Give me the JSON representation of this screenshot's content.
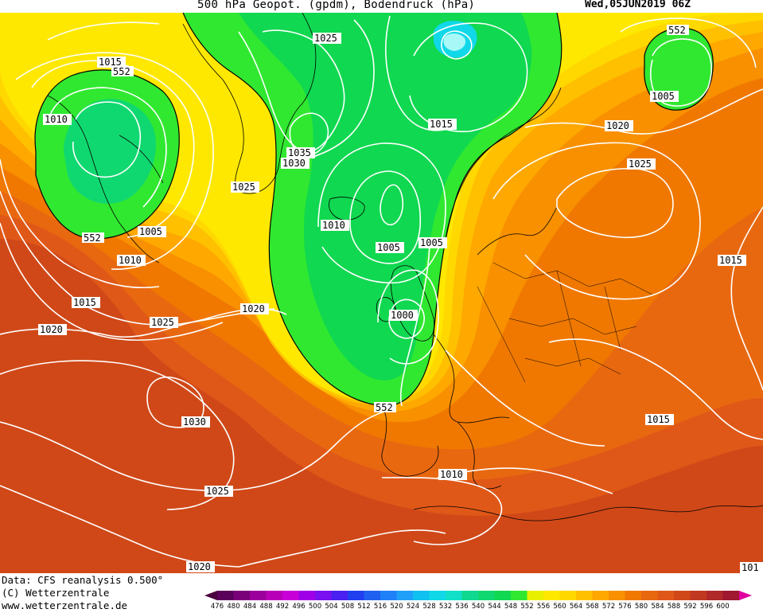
{
  "header": {
    "title": "500 hPa Geopot. (gpdm), Bodendruck (hPa)",
    "timestamp": "Wed,05JUN2019 06Z"
  },
  "footer": {
    "data_source": "Data: CFS reanalysis 0.500°",
    "copyright": "(C) Wetterzentrale",
    "website": "www.wetterzentrale.de"
  },
  "legend": {
    "values": [
      "476",
      "480",
      "484",
      "488",
      "492",
      "496",
      "500",
      "504",
      "508",
      "512",
      "516",
      "520",
      "524",
      "528",
      "532",
      "536",
      "540",
      "544",
      "548",
      "552",
      "556",
      "560",
      "564",
      "568",
      "572",
      "576",
      "580",
      "584",
      "588",
      "592",
      "596",
      "600"
    ],
    "colors": [
      "#5a005a",
      "#7a007a",
      "#9c009c",
      "#b800b8",
      "#c800d8",
      "#a000e8",
      "#7a10f0",
      "#4a20f0",
      "#2040f0",
      "#2060f0",
      "#2080f8",
      "#20a0f8",
      "#10c0f0",
      "#10d8e8",
      "#10e0c8",
      "#10d890",
      "#10d870",
      "#10d850",
      "#30e830",
      "#e8f000",
      "#ffe800",
      "#ffd800",
      "#ffc000",
      "#ffa800",
      "#f89000",
      "#f07800",
      "#e86810",
      "#e05818",
      "#d04818",
      "#c03820",
      "#b02828",
      "#a01830"
    ],
    "low_arrow_color": "#4a0040",
    "high_arrow_color": "#e000a0"
  },
  "isobars": [
    {
      "id": "1025-greenland-top",
      "label": "1025"
    },
    {
      "id": "1015-canada",
      "label": "1015"
    },
    {
      "id": "552-canada",
      "label": "552"
    },
    {
      "id": "1010-canada-west",
      "label": "1010"
    },
    {
      "id": "1035-greenland",
      "label": "1035"
    },
    {
      "id": "1030-greenland",
      "label": "1030"
    },
    {
      "id": "1025-greenland-south",
      "label": "1025"
    },
    {
      "id": "1015-northsea",
      "label": "1015"
    },
    {
      "id": "1010-atlantic",
      "label": "1010"
    },
    {
      "id": "1005-atlantic",
      "label": "1005"
    },
    {
      "id": "1005-norway",
      "label": "1005"
    },
    {
      "id": "1000-uk",
      "label": "1000"
    },
    {
      "id": "1005-canada",
      "label": "1005"
    },
    {
      "id": "1010-canada",
      "label": "1010"
    },
    {
      "id": "552-canada-south",
      "label": "552"
    },
    {
      "id": "1015-atlantic-west",
      "label": "1015"
    },
    {
      "id": "1020-atlantic-west",
      "label": "1020"
    },
    {
      "id": "1020-atlantic-center",
      "label": "1020"
    },
    {
      "id": "1025-atlantic",
      "label": "1025"
    },
    {
      "id": "1030-azores",
      "label": "1030"
    },
    {
      "id": "1025-atlantic-south",
      "label": "1025"
    },
    {
      "id": "1020-atlantic-bottom",
      "label": "1020"
    },
    {
      "id": "552-iberia",
      "label": "552"
    },
    {
      "id": "1010-mediterranean",
      "label": "1010"
    },
    {
      "id": "1015-balkans",
      "label": "1015"
    },
    {
      "id": "1020-scandinavia",
      "label": "1020"
    },
    {
      "id": "1025-russia",
      "label": "1025"
    },
    {
      "id": "1015-russia-east",
      "label": "1015"
    },
    {
      "id": "552-arctic",
      "label": "552"
    },
    {
      "id": "1005-arctic",
      "label": "1005"
    },
    {
      "id": "101-edge",
      "label": "101"
    },
    {
      "id": "1015-greenland-tip",
      "label": "1015"
    }
  ]
}
